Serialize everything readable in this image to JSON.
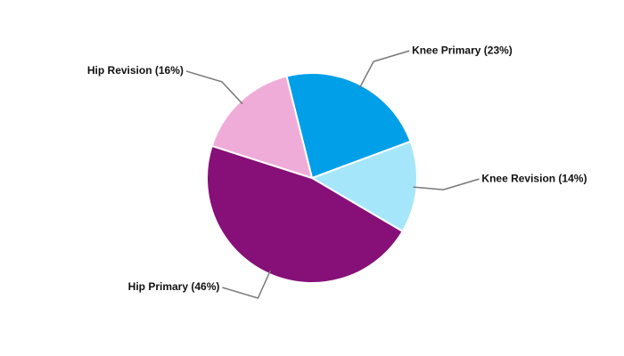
{
  "chart_data": {
    "type": "pie",
    "categories": [
      "Knee Primary (23%)",
      "Knee Revision (14%)",
      "Hip Primary (46%)",
      "Hip Revision (16%)"
    ],
    "values": [
      23,
      14,
      46,
      16
    ],
    "colors": [
      "#009fe8",
      "#a6e6fb",
      "#861078",
      "#f0acd8"
    ]
  }
}
